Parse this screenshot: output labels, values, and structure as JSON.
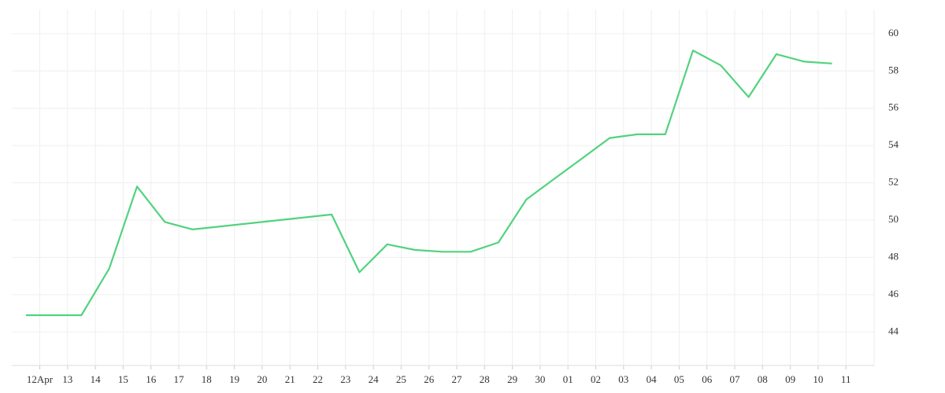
{
  "chart_data": {
    "type": "line",
    "xticks": [
      "12Apr",
      "13",
      "14",
      "15",
      "16",
      "17",
      "18",
      "19",
      "20",
      "21",
      "22",
      "23",
      "24",
      "25",
      "26",
      "27",
      "28",
      "29",
      "30",
      "01",
      "02",
      "03",
      "04",
      "05",
      "06",
      "07",
      "08",
      "09",
      "10",
      "11"
    ],
    "x": [
      "12Apr",
      "13",
      "14",
      "15",
      "16",
      "17",
      "18",
      "23",
      "24",
      "25",
      "26",
      "27",
      "28",
      "29",
      "30",
      "01",
      "02",
      "03",
      "04",
      "05",
      "06",
      "07",
      "08",
      "09",
      "10",
      "11"
    ],
    "series": [
      {
        "color": "#52d27f",
        "values": [
          44.9,
          44.9,
          44.9,
          47.4,
          51.8,
          49.9,
          49.5,
          50.3,
          47.2,
          48.7,
          48.4,
          48.3,
          48.3,
          48.8,
          51.1,
          52.2,
          53.3,
          54.4,
          54.6,
          54.6,
          59.1,
          58.3,
          56.6,
          58.9,
          58.5,
          58.4
        ]
      }
    ],
    "ylim": [
      42.2,
      61.3
    ],
    "yticks": [
      44,
      46,
      48,
      50,
      52,
      54,
      56,
      58,
      60
    ],
    "grid": true
  }
}
